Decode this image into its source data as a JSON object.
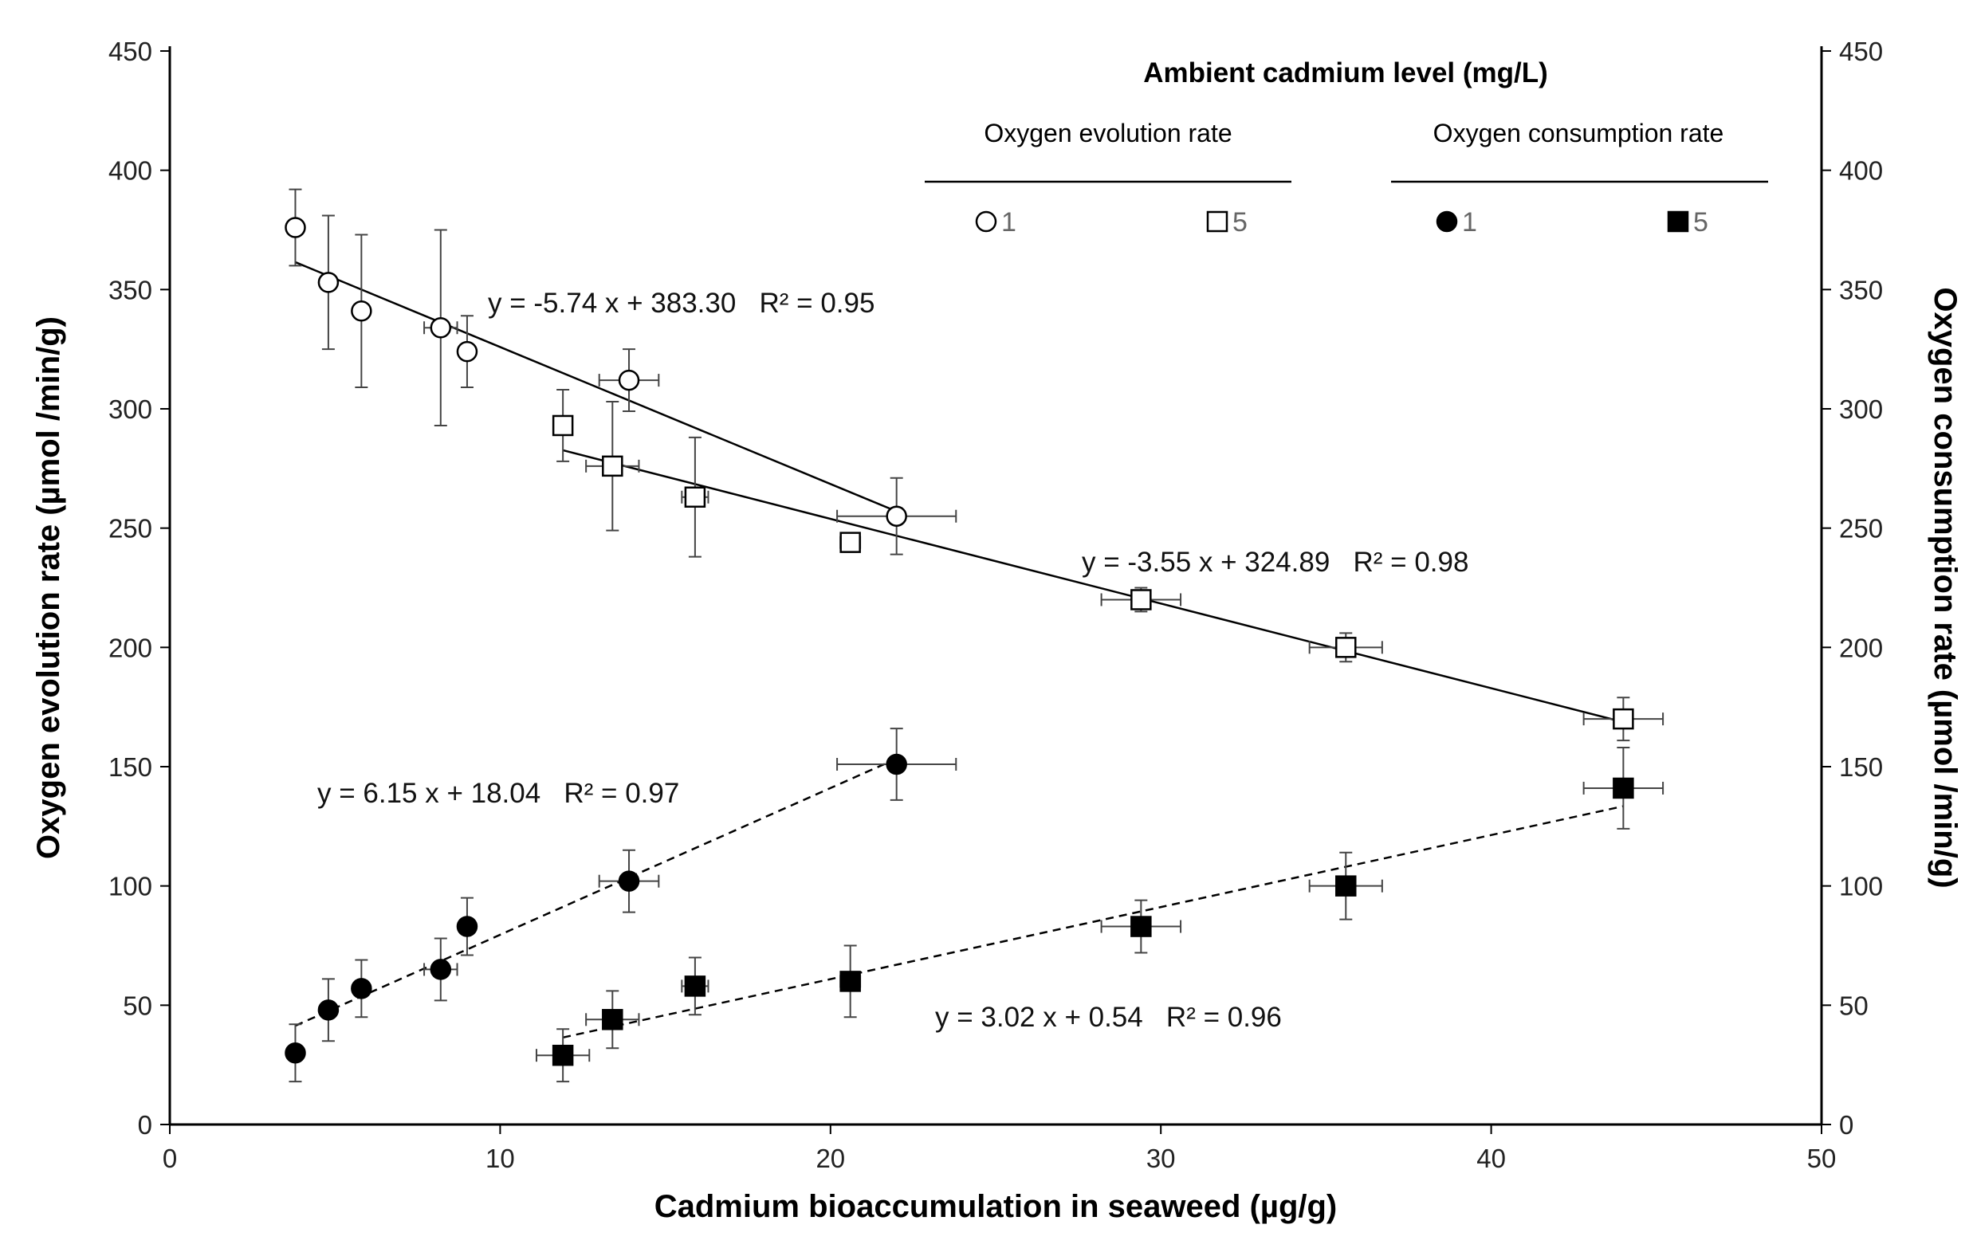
{
  "chart_data": {
    "type": "scatter",
    "xlabel": "Cadmium bioaccumulation in seaweed (µg/g)",
    "ylabel": "Oxygen evolution rate (µmol /min/g)",
    "y2label": "Oxygen consumption rate (µmol /min/g)",
    "xlim": [
      0,
      50
    ],
    "ylim": [
      0,
      450
    ],
    "y2lim": [
      0,
      450
    ],
    "xticks": [
      0,
      10,
      20,
      30,
      40,
      50
    ],
    "yticks": [
      0,
      50,
      100,
      150,
      200,
      250,
      300,
      350,
      400,
      450
    ],
    "y2ticks": [
      0,
      50,
      100,
      150,
      200,
      250,
      300,
      350,
      400,
      450
    ],
    "grid": false,
    "legend": {
      "title": "Ambient cadmium level (mg/L)",
      "groups": [
        {
          "heading": "Oxygen evolution rate",
          "entries": [
            {
              "marker": "open-circle",
              "label": "1"
            },
            {
              "marker": "open-square",
              "label": "5"
            }
          ]
        },
        {
          "heading": "Oxygen consumption rate",
          "entries": [
            {
              "marker": "filled-circle",
              "label": "1"
            },
            {
              "marker": "filled-square",
              "label": "5"
            }
          ]
        }
      ]
    },
    "series": [
      {
        "name": "Oxygen evolution rate, 1 mg/L",
        "marker": "open-circle",
        "fit_style": "solid",
        "fit": {
          "slope": -5.74,
          "intercept": 383.3,
          "x_range": [
            3.8,
            22
          ]
        },
        "equation": "y = -5.74 x + 383.30   R² = 0.95",
        "points": [
          {
            "x": 3.8,
            "y": 376,
            "yerr": 16,
            "xerr": 0
          },
          {
            "x": 4.8,
            "y": 353,
            "yerr": 28,
            "xerr": 0
          },
          {
            "x": 5.8,
            "y": 341,
            "yerr": 32,
            "xerr": 0
          },
          {
            "x": 8.2,
            "y": 334,
            "yerr": 41,
            "xerr": 0.5
          },
          {
            "x": 9.0,
            "y": 324,
            "yerr": 15,
            "xerr": 0
          },
          {
            "x": 13.9,
            "y": 312,
            "yerr": 13,
            "xerr": 0.9
          },
          {
            "x": 22.0,
            "y": 255,
            "yerr": 16,
            "xerr": 1.8
          }
        ]
      },
      {
        "name": "Oxygen evolution rate, 5 mg/L",
        "marker": "open-square",
        "fit_style": "solid",
        "fit": {
          "slope": -3.55,
          "intercept": 324.89,
          "x_range": [
            11.9,
            44
          ]
        },
        "equation": "y = -3.55 x + 324.89   R² = 0.98",
        "points": [
          {
            "x": 11.9,
            "y": 293,
            "yerr": 15,
            "xerr": 0
          },
          {
            "x": 13.4,
            "y": 276,
            "yerr": 27,
            "xerr": 0.8
          },
          {
            "x": 15.9,
            "y": 263,
            "yerr": 25,
            "xerr": 0.4
          },
          {
            "x": 20.6,
            "y": 244,
            "yerr": 4,
            "xerr": 0.3
          },
          {
            "x": 29.4,
            "y": 220,
            "yerr": 5,
            "xerr": 1.2
          },
          {
            "x": 35.6,
            "y": 200,
            "yerr": 6,
            "xerr": 1.1
          },
          {
            "x": 44.0,
            "y": 170,
            "yerr": 9,
            "xerr": 1.2
          }
        ]
      },
      {
        "name": "Oxygen consumption rate, 1 mg/L",
        "marker": "filled-circle",
        "fit_style": "dashed",
        "fit": {
          "slope": 6.15,
          "intercept": 18.04,
          "x_range": [
            3.8,
            22
          ]
        },
        "equation": "y = 6.15 x + 18.04   R² = 0.97",
        "points": [
          {
            "x": 3.8,
            "y": 30,
            "yerr": 12,
            "xerr": 0
          },
          {
            "x": 4.8,
            "y": 48,
            "yerr": 13,
            "xerr": 0
          },
          {
            "x": 5.8,
            "y": 57,
            "yerr": 12,
            "xerr": 0
          },
          {
            "x": 8.2,
            "y": 65,
            "yerr": 13,
            "xerr": 0.5
          },
          {
            "x": 9.0,
            "y": 83,
            "yerr": 12,
            "xerr": 0
          },
          {
            "x": 13.9,
            "y": 102,
            "yerr": 13,
            "xerr": 0.9
          },
          {
            "x": 22.0,
            "y": 151,
            "yerr": 15,
            "xerr": 1.8
          }
        ]
      },
      {
        "name": "Oxygen consumption rate, 5 mg/L",
        "marker": "filled-square",
        "fit_style": "dashed",
        "fit": {
          "slope": 3.02,
          "intercept": 0.54,
          "x_range": [
            11.9,
            44
          ]
        },
        "equation": "y = 3.02 x + 0.54   R² = 0.96",
        "points": [
          {
            "x": 11.9,
            "y": 29,
            "yerr": 11,
            "xerr": 0.8
          },
          {
            "x": 13.4,
            "y": 44,
            "yerr": 12,
            "xerr": 0.8
          },
          {
            "x": 15.9,
            "y": 58,
            "yerr": 12,
            "xerr": 0.4
          },
          {
            "x": 20.6,
            "y": 60,
            "yerr": 15,
            "xerr": 0.3
          },
          {
            "x": 29.4,
            "y": 83,
            "yerr": 11,
            "xerr": 1.2
          },
          {
            "x": 35.6,
            "y": 100,
            "yerr": 14,
            "xerr": 1.1
          },
          {
            "x": 44.0,
            "y": 141,
            "yerr": 17,
            "xerr": 1.2
          }
        ]
      }
    ]
  }
}
